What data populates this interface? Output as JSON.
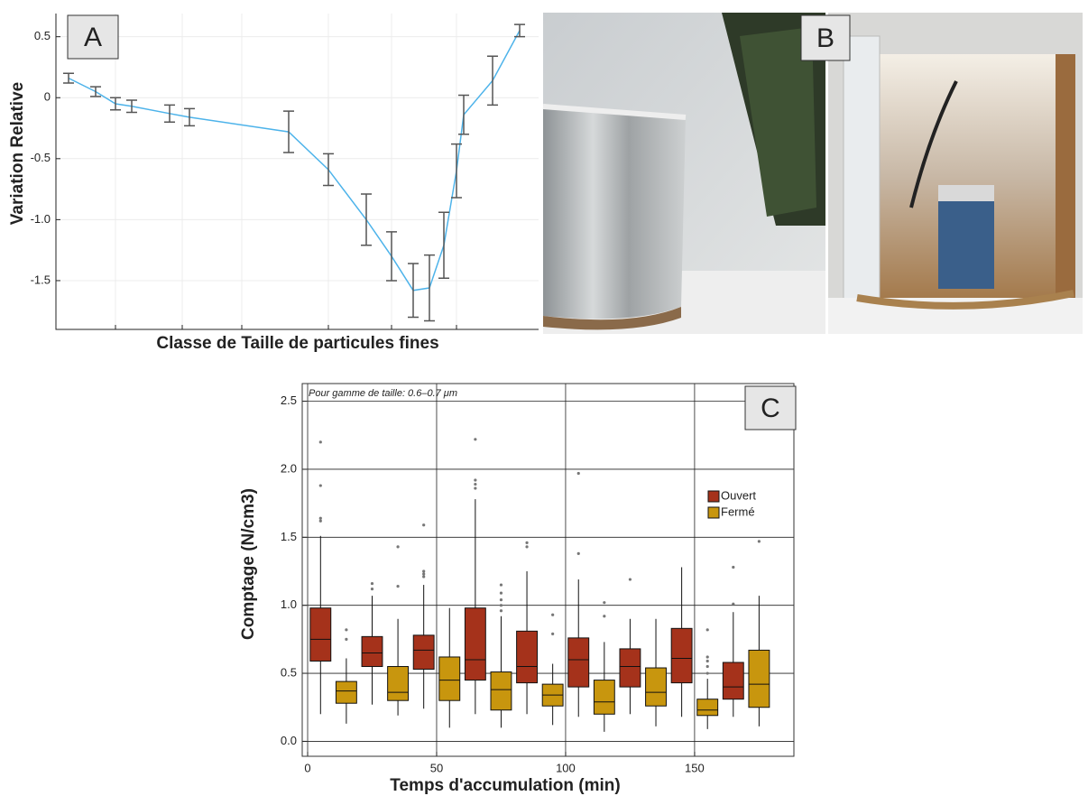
{
  "chart_data": [
    {
      "type": "line",
      "panel_label": "A",
      "y_label": "Variation Relative",
      "x_label": "Classe de Taille de particules fines",
      "x": [
        14,
        44,
        66,
        84,
        126,
        148,
        258,
        302,
        344,
        372,
        396,
        414,
        430,
        444,
        452,
        484,
        514
      ],
      "series": [
        {
          "color": "#4db3ea",
          "error_color": "#555555",
          "values": [
            0.16,
            0.05,
            -0.05,
            -0.07,
            -0.13,
            -0.16,
            -0.28,
            -0.59,
            -1.0,
            -1.3,
            -1.58,
            -1.56,
            -1.21,
            -0.6,
            -0.14,
            0.14,
            0.55
          ],
          "errors": [
            0.04,
            0.04,
            0.05,
            0.05,
            0.07,
            0.07,
            0.17,
            0.13,
            0.21,
            0.2,
            0.22,
            0.27,
            0.27,
            0.22,
            0.16,
            0.2,
            0.05
          ]
        }
      ],
      "xlim": [
        0,
        535
      ],
      "xticks": [
        66,
        140,
        206,
        302,
        372,
        444
      ],
      "show_xtick_labels": false,
      "ylim": [
        -1.9,
        0.69
      ],
      "yticks": [
        0.5,
        0,
        -0.5,
        {
          "value": -1,
          "label": "-1.0"
        },
        -1.5
      ],
      "grid": true
    },
    {
      "type": "box",
      "panel_label": "C",
      "annotation": "Pour gamme de taille: 0.6–0.7 μm",
      "x_label": "Temps d'accumulation (min)",
      "y_label": "Comptage (N/cm3)",
      "xlim": [
        -2.1,
        188.5
      ],
      "xticks": [
        0,
        50,
        100,
        150
      ],
      "ylim": [
        -0.11,
        2.63
      ],
      "yticks": [
        {
          "value": 0,
          "label": "0.0"
        },
        0.5,
        {
          "value": 1,
          "label": "1.0"
        },
        1.5,
        {
          "value": 2,
          "label": "2.0"
        },
        2.5
      ],
      "grid": true,
      "legend": "upper right",
      "box_width": 8,
      "series": [
        {
          "name": "Ouvert",
          "color": "#a5321b",
          "x": [
            5,
            25,
            45,
            65,
            85,
            105,
            125,
            145,
            165
          ],
          "q1": [
            0.59,
            0.55,
            0.53,
            0.45,
            0.43,
            0.4,
            0.4,
            0.43,
            0.31
          ],
          "median": [
            0.75,
            0.65,
            0.67,
            0.6,
            0.55,
            0.6,
            0.55,
            0.61,
            0.4
          ],
          "q3": [
            0.98,
            0.77,
            0.78,
            0.98,
            0.81,
            0.76,
            0.68,
            0.83,
            0.58
          ],
          "whisker_low": [
            0.2,
            0.27,
            0.24,
            0.2,
            0.2,
            0.18,
            0.2,
            0.18,
            0.18
          ],
          "whisker_high": [
            1.51,
            1.07,
            1.15,
            1.78,
            1.25,
            1.19,
            0.9,
            1.28,
            0.95
          ],
          "outliers": [
            [
              1.62,
              1.64,
              1.88,
              2.2
            ],
            [
              1.12,
              1.16
            ],
            [
              1.21,
              1.23,
              1.25,
              1.59
            ],
            [
              1.86,
              1.89,
              1.92,
              2.22
            ],
            [
              1.43,
              1.46
            ],
            [
              1.38,
              1.97
            ],
            [
              1.19
            ],
            [],
            [
              1.01,
              1.28
            ]
          ]
        },
        {
          "name": "Fermé",
          "color": "#c8960e",
          "x": [
            15,
            35,
            55,
            75,
            95,
            115,
            135,
            155,
            175
          ],
          "q1": [
            0.28,
            0.3,
            0.3,
            0.23,
            0.26,
            0.2,
            0.26,
            0.19,
            0.25
          ],
          "median": [
            0.37,
            0.36,
            0.45,
            0.38,
            0.34,
            0.29,
            0.36,
            0.23,
            0.42
          ],
          "q3": [
            0.44,
            0.55,
            0.62,
            0.51,
            0.42,
            0.45,
            0.54,
            0.31,
            0.67
          ],
          "whisker_low": [
            0.13,
            0.19,
            0.1,
            0.1,
            0.12,
            0.07,
            0.11,
            0.09,
            0.11
          ],
          "whisker_high": [
            0.61,
            0.9,
            0.98,
            0.92,
            0.57,
            0.73,
            0.9,
            0.46,
            1.07
          ],
          "outliers": [
            [
              0.75,
              0.82
            ],
            [
              1.14,
              1.43
            ],
            [],
            [
              0.96,
              1.0,
              1.04,
              1.09,
              1.15
            ],
            [
              0.79,
              0.93
            ],
            [
              0.92,
              1.02
            ],
            [],
            [
              0.5,
              0.55,
              0.59,
              0.62,
              0.82
            ],
            [
              1.47
            ]
          ]
        }
      ]
    }
  ],
  "photo_panel": {
    "label": "B"
  }
}
